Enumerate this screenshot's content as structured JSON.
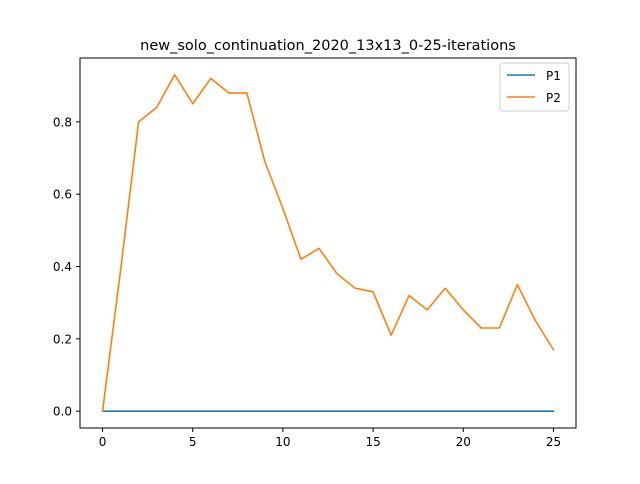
{
  "chart_data": {
    "type": "line",
    "title": "new_solo_continuation_2020_13x13_0-25-iterations",
    "xlabel": "",
    "ylabel": "",
    "xlim": [
      -1.25,
      26.25
    ],
    "ylim": [
      -0.0465,
      0.9765
    ],
    "x_ticks": [
      0,
      5,
      10,
      15,
      20,
      25
    ],
    "x_tick_labels": [
      "0",
      "5",
      "10",
      "15",
      "20",
      "25"
    ],
    "y_ticks": [
      0.0,
      0.2,
      0.4,
      0.6,
      0.8
    ],
    "y_tick_labels": [
      "0.0",
      "0.2",
      "0.4",
      "0.6",
      "0.8"
    ],
    "grid": false,
    "legend_position": "top-right",
    "x": [
      0,
      1,
      2,
      3,
      4,
      5,
      6,
      7,
      8,
      9,
      10,
      11,
      12,
      13,
      14,
      15,
      16,
      17,
      18,
      19,
      20,
      21,
      22,
      23,
      24,
      25
    ],
    "series": [
      {
        "name": "P1",
        "color": "#1f77b4",
        "values": [
          0,
          0,
          0,
          0,
          0,
          0,
          0,
          0,
          0,
          0,
          0,
          0,
          0,
          0,
          0,
          0,
          0,
          0,
          0,
          0,
          0,
          0,
          0,
          0,
          0,
          0
        ]
      },
      {
        "name": "P2",
        "color": "#ff7f0e",
        "values": [
          0.0,
          0.39,
          0.8,
          0.84,
          0.93,
          0.85,
          0.92,
          0.88,
          0.88,
          0.69,
          0.56,
          0.42,
          0.45,
          0.38,
          0.34,
          0.33,
          0.21,
          0.32,
          0.28,
          0.34,
          0.28,
          0.23,
          0.23,
          0.35,
          0.25,
          0.17
        ]
      }
    ]
  }
}
